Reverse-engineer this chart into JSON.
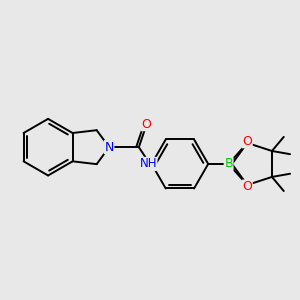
{
  "background_color": "#e8e8e8",
  "bond_color": "#000000",
  "bond_width": 1.4,
  "atom_colors": {
    "N": "#0000ff",
    "O": "#ff0000",
    "B": "#00cc00",
    "C": "#000000",
    "H": "#808080"
  },
  "font_size": 8.5,
  "figsize": [
    3.0,
    3.0
  ],
  "dpi": 100
}
